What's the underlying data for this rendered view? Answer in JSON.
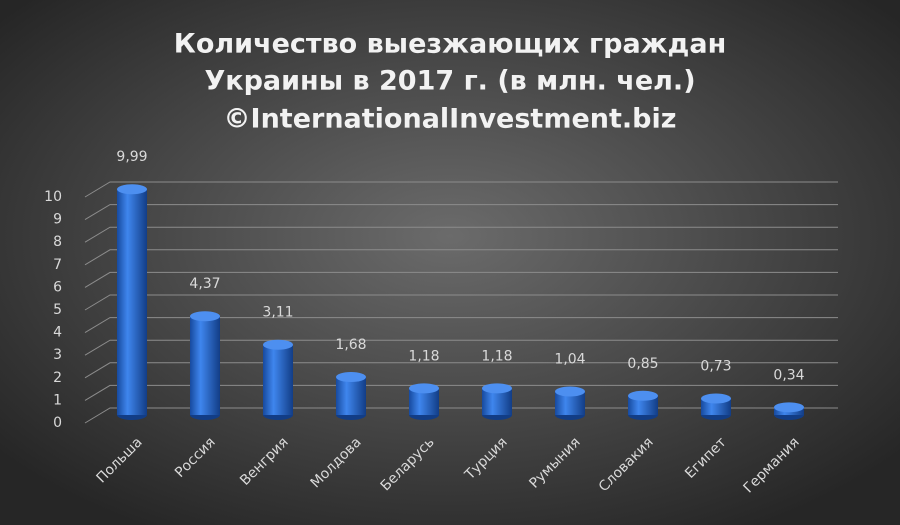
{
  "chart_data": {
    "type": "bar",
    "title": [
      "Количество выезжающих граждан",
      "Украины в 2017 г. (в млн. чел.)",
      "©InternationalInvestment.biz"
    ],
    "categories": [
      "Польша",
      "Россия",
      "Венгрия",
      "Молдова",
      "Беларусь",
      "Турция",
      "Румыния",
      "Словакия",
      "Египет",
      "Германия"
    ],
    "values": [
      9.99,
      4.37,
      3.11,
      1.68,
      1.18,
      1.18,
      1.04,
      0.85,
      0.73,
      0.34
    ],
    "value_labels": [
      "9,99",
      "4,37",
      "3,11",
      "1,68",
      "1,18",
      "1,18",
      "1,04",
      "0,85",
      "0,73",
      "0,34"
    ],
    "color": "#2e6fd6",
    "ylim": [
      0,
      10
    ],
    "yticks": [
      0,
      1,
      2,
      3,
      4,
      5,
      6,
      7,
      8,
      9,
      10
    ],
    "grid": true
  }
}
